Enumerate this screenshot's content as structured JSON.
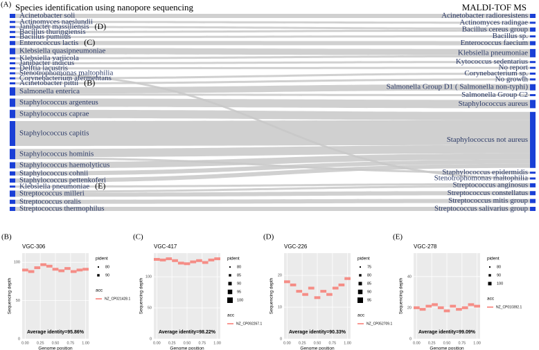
{
  "chart_data": [
    {
      "type": "sankey",
      "panel": "(A)",
      "left_title": "Species identification using nanopore sequencing",
      "right_title": "MALDI-TOF MS",
      "color": "#1a3fd6",
      "link_color": "#c8c8c8",
      "left_nodes": [
        {
          "name": "Acinetobacter soli"
        },
        {
          "name": "Actinomyces naeslundii"
        },
        {
          "name": "Janibacter massiliensis",
          "annotation": "(D)"
        },
        {
          "name": "Bacillus thuringiensis"
        },
        {
          "name": "Bacillus pumilus"
        },
        {
          "name": "Enterococcus lactis",
          "annotation": "(C)"
        },
        {
          "name": "Klebsiella quasipneumoniae"
        },
        {
          "name": "Klebsiella variicola"
        },
        {
          "name": "Janibacter indicus"
        },
        {
          "name": "Delftia lacustris"
        },
        {
          "name": "Stenotrophomonas maltophilia"
        },
        {
          "name": "Corynebacterium afermentans"
        },
        {
          "name": "Acinetobacter pittii",
          "annotation": "(B)"
        },
        {
          "name": "Salmonella enterica"
        },
        {
          "name": "Staphylococcus argenteus"
        },
        {
          "name": "Staphylococcus caprae"
        },
        {
          "name": "Staphylococcus capitis"
        },
        {
          "name": "Staphylococcus hominis"
        },
        {
          "name": "Staphylococcus haemolyticus"
        },
        {
          "name": "Staphylococcus cohnii"
        },
        {
          "name": "Staphylococcus pettenkoferi"
        },
        {
          "name": "Klebsiella pneumoniae",
          "annotation": "(E)"
        },
        {
          "name": "Streptococcus milleri"
        },
        {
          "name": "Streptococcus oralis"
        },
        {
          "name": "Streptococcus thermophilus"
        }
      ],
      "right_nodes": [
        "Acinetobacter radioresistens",
        "Actinomyces radingae",
        "Bacillus cereus group",
        "Bacillus sp.",
        "Enterococcus faecium",
        "Klebsiella pneumoniae",
        "Kytococcus sedentarius",
        "No report",
        "Corynebacterium sp.",
        "No growth",
        "Salmonella Group D1 ( Salmonella non-typhi)",
        "Salmonella Group C2",
        "Staphylococcus aureus",
        "Staphylococcus not aureus",
        "Staphylococcus epidermidis",
        "Stenotrophomonas maltophilia",
        "Streptococcus anginosus",
        "Streptococcus constellatus",
        "Streptococcus mitis group",
        "Streptococcus salivarius group"
      ],
      "links": [
        {
          "source": "Acinetobacter soli",
          "target": "Acinetobacter radioresistens",
          "value": 2
        },
        {
          "source": "Actinomyces naeslundii",
          "target": "Actinomyces radingae",
          "value": 1
        },
        {
          "source": "Janibacter massiliensis",
          "target": "Bacillus cereus group",
          "value": 1
        },
        {
          "source": "Bacillus thuringiensis",
          "target": "Bacillus cereus group",
          "value": 1
        },
        {
          "source": "Bacillus pumilus",
          "target": "Bacillus sp.",
          "value": 1
        },
        {
          "source": "Enterococcus lactis",
          "target": "Enterococcus faecium",
          "value": 2
        },
        {
          "source": "Klebsiella quasipneumoniae",
          "target": "Klebsiella pneumoniae",
          "value": 3
        },
        {
          "source": "Klebsiella variicola",
          "target": "Klebsiella pneumoniae",
          "value": 1
        },
        {
          "source": "Janibacter indicus",
          "target": "Kytococcus sedentarius",
          "value": 1
        },
        {
          "source": "Delftia lacustris",
          "target": "No report",
          "value": 1
        },
        {
          "source": "Stenotrophomonas maltophilia",
          "target": "Stenotrophomonas maltophilia",
          "value": 1
        },
        {
          "source": "Corynebacterium afermentans",
          "target": "Corynebacterium sp.",
          "value": 1
        },
        {
          "source": "Acinetobacter pittii",
          "target": "No growth",
          "value": 1
        },
        {
          "source": "Salmonella enterica",
          "target": "Salmonella Group D1 ( Salmonella non-typhi)",
          "value": 3
        },
        {
          "source": "Salmonella enterica",
          "target": "Salmonella Group C2",
          "value": 1
        },
        {
          "source": "Staphylococcus argenteus",
          "target": "Staphylococcus aureus",
          "value": 4
        },
        {
          "source": "Staphylococcus caprae",
          "target": "Staphylococcus not aureus",
          "value": 4
        },
        {
          "source": "Staphylococcus capitis",
          "target": "Staphylococcus not aureus",
          "value": 12
        },
        {
          "source": "Staphylococcus hominis",
          "target": "Staphylococcus not aureus",
          "value": 4
        },
        {
          "source": "Staphylococcus hominis",
          "target": "Staphylococcus epidermidis",
          "value": 1
        },
        {
          "source": "Staphylococcus haemolyticus",
          "target": "Staphylococcus not aureus",
          "value": 3
        },
        {
          "source": "Staphylococcus cohnii",
          "target": "Staphylococcus not aureus",
          "value": 2
        },
        {
          "source": "Staphylococcus pettenkoferi",
          "target": "Staphylococcus not aureus",
          "value": 2
        },
        {
          "source": "Klebsiella pneumoniae",
          "target": "Streptococcus anginosus",
          "value": 1
        },
        {
          "source": "Streptococcus milleri",
          "target": "Streptococcus anginosus",
          "value": 1
        },
        {
          "source": "Streptococcus milleri",
          "target": "Streptococcus constellatus",
          "value": 2
        },
        {
          "source": "Streptococcus oralis",
          "target": "Streptococcus mitis group",
          "value": 2
        },
        {
          "source": "Streptococcus thermophilus",
          "target": "Streptococcus salivarius group",
          "value": 2
        }
      ]
    },
    {
      "type": "segments",
      "panel": "(B)",
      "title": "VGC-306",
      "xlabel": "Genome position",
      "ylabel": "Sequencing depth",
      "annotation": "Average identity=95.86%",
      "color": "#f8766d",
      "grid": true,
      "x": [
        0,
        0.1,
        0.2,
        0.3,
        0.4,
        0.5,
        0.6,
        0.7,
        0.8,
        0.9,
        1
      ],
      "values": [
        90,
        88,
        93,
        97,
        95,
        91,
        89,
        92,
        88,
        90,
        91
      ],
      "xlim": [
        -0.05,
        1.05
      ],
      "ylim": [
        0,
        112
      ],
      "xticks": [
        {
          "value": 0,
          "label": "0.00"
        },
        {
          "value": 0.25,
          "label": "0.25"
        },
        {
          "value": 0.5,
          "label": "0.50"
        },
        {
          "value": 0.75,
          "label": "0.75"
        },
        {
          "value": 1,
          "label": "1.00"
        }
      ],
      "yticks": [
        0,
        50,
        100
      ],
      "legend_size_title": "pident",
      "legend_sizes": [
        80,
        90
      ],
      "legend_color_title": "acc",
      "legend_color": "NZ_CP021428.1"
    },
    {
      "type": "segments",
      "panel": "(C)",
      "title": "VGC-417",
      "xlabel": "Genome position",
      "ylabel": "Sequencing depth",
      "annotation": "Average identity=98.22%",
      "color": "#f8766d",
      "grid": true,
      "x": [
        0,
        0.1,
        0.2,
        0.3,
        0.4,
        0.5,
        0.6,
        0.7,
        0.8,
        0.9,
        1
      ],
      "values": [
        128,
        127,
        129,
        126,
        122,
        121,
        124,
        126,
        123,
        127,
        129
      ],
      "xlim": [
        -0.05,
        1.05
      ],
      "ylim": [
        0,
        138
      ],
      "xticks": [
        {
          "value": 0,
          "label": "0.00"
        },
        {
          "value": 0.25,
          "label": "0.25"
        },
        {
          "value": 0.5,
          "label": "0.50"
        },
        {
          "value": 0.75,
          "label": "0.75"
        },
        {
          "value": 1,
          "label": "1.00"
        }
      ],
      "yticks": [
        0,
        50,
        100
      ],
      "legend_size_title": "pident",
      "legend_sizes": [
        80,
        85,
        90,
        95,
        100
      ],
      "legend_color_title": "acc",
      "legend_color": "NZ_CP092267.1"
    },
    {
      "type": "segments",
      "panel": "(D)",
      "title": "VGC-226",
      "xlabel": "Genome position",
      "ylabel": "Sequencing depth",
      "annotation": "Average identity=90.33%",
      "color": "#f8766d",
      "grid": true,
      "x": [
        0,
        0.1,
        0.2,
        0.3,
        0.4,
        0.5,
        0.6,
        0.7,
        0.8,
        0.9,
        1
      ],
      "values": [
        18,
        17,
        15,
        14,
        16,
        13,
        15,
        14,
        16,
        17,
        19
      ],
      "xlim": [
        -0.05,
        1.05
      ],
      "ylim": [
        0,
        27
      ],
      "xticks": [
        {
          "value": 0,
          "label": "0.00"
        },
        {
          "value": 0.25,
          "label": "0.25"
        },
        {
          "value": 0.5,
          "label": "0.50"
        },
        {
          "value": 0.75,
          "label": "0.75"
        },
        {
          "value": 1,
          "label": "1.00"
        }
      ],
      "yticks": [
        0,
        10,
        20
      ],
      "legend_size_title": "pident",
      "legend_sizes": [
        75,
        80,
        85,
        90,
        95
      ],
      "legend_color_title": "acc",
      "legend_color": "NZ_CP052709.1"
    },
    {
      "type": "segments",
      "panel": "(E)",
      "title": "VGC-278",
      "xlabel": "Genome position",
      "ylabel": "Sequencing depth",
      "annotation": "Average identity=99.09%",
      "color": "#f8766d",
      "grid": true,
      "x": [
        0,
        0.1,
        0.2,
        0.3,
        0.4,
        0.5,
        0.6,
        0.7,
        0.8,
        0.9,
        1
      ],
      "values": [
        20,
        19,
        21,
        22,
        20,
        18,
        21,
        19,
        20,
        22,
        21
      ],
      "xlim": [
        -0.05,
        1.05
      ],
      "ylim": [
        0,
        55
      ],
      "xticks": [
        {
          "value": 0,
          "label": "0.00"
        },
        {
          "value": 0.25,
          "label": "0.25"
        },
        {
          "value": 0.5,
          "label": "0.50"
        },
        {
          "value": 0.75,
          "label": "0.75"
        },
        {
          "value": 1,
          "label": "1.00"
        }
      ],
      "yticks": [
        0,
        20,
        40
      ],
      "legend_size_title": "pident",
      "legend_sizes": [
        80,
        90,
        100
      ],
      "legend_color_title": "acc",
      "legend_color": "NZ_CP010392.1"
    }
  ]
}
